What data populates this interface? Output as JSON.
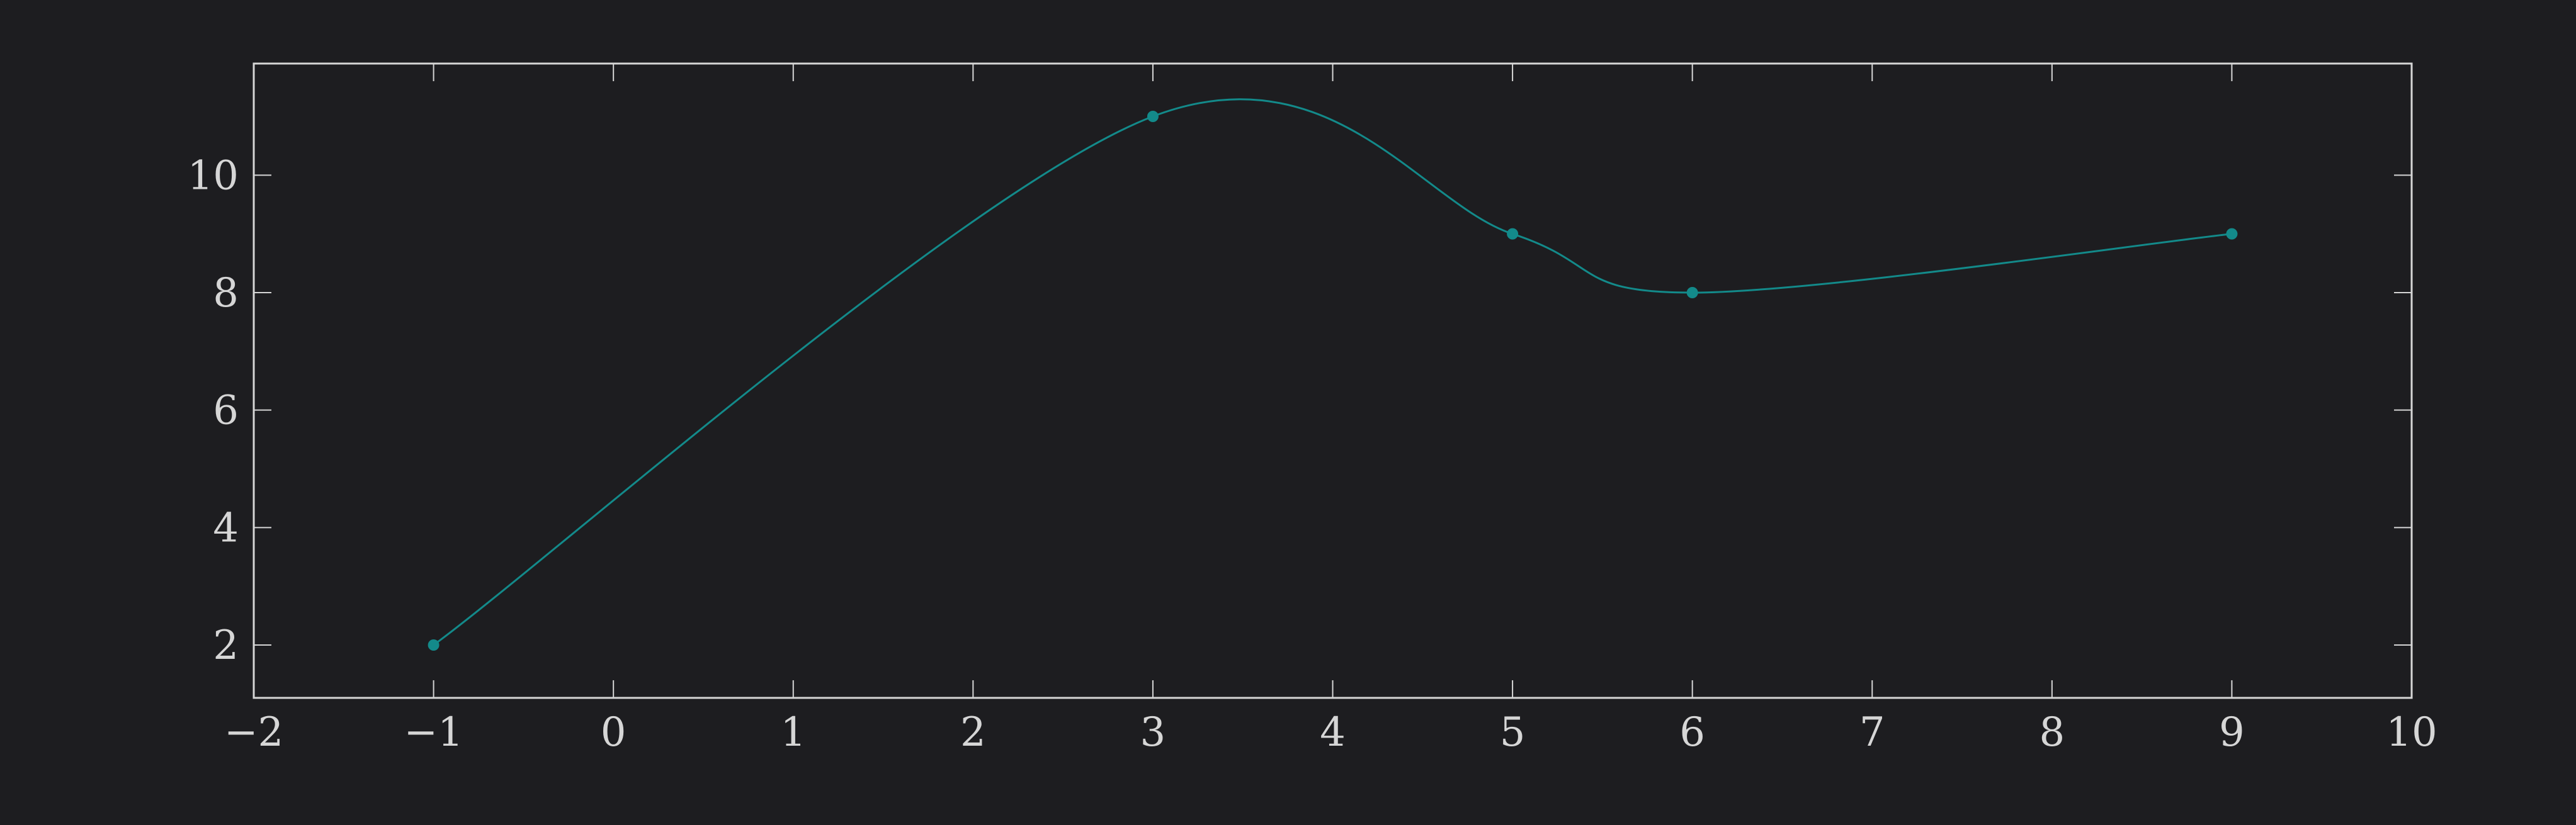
{
  "chart_data": {
    "type": "line",
    "title": "",
    "xlabel": "",
    "ylabel": "",
    "xlim": [
      -2,
      10
    ],
    "ylim": [
      1.1,
      11.9
    ],
    "xticks": [
      -2,
      -1,
      0,
      1,
      2,
      3,
      4,
      5,
      6,
      7,
      8,
      9,
      10
    ],
    "xtick_labels": [
      "−2",
      "−1",
      "0",
      "1",
      "2",
      "3",
      "4",
      "5",
      "6",
      "7",
      "8",
      "9",
      "10"
    ],
    "yticks": [
      2,
      4,
      6,
      8,
      10
    ],
    "ytick_labels": [
      "2",
      "4",
      "6",
      "8",
      "10"
    ],
    "grid": false,
    "smooth": true,
    "series": [
      {
        "x": [
          -1,
          3,
          5,
          6,
          9
        ],
        "y": [
          2,
          11,
          9,
          8,
          9
        ],
        "color": "#138a8a"
      }
    ],
    "colors": {
      "background": "#1d1d20",
      "axes": "#d6d6d6",
      "text": "#d6d6d6",
      "series": "#138a8a"
    }
  }
}
